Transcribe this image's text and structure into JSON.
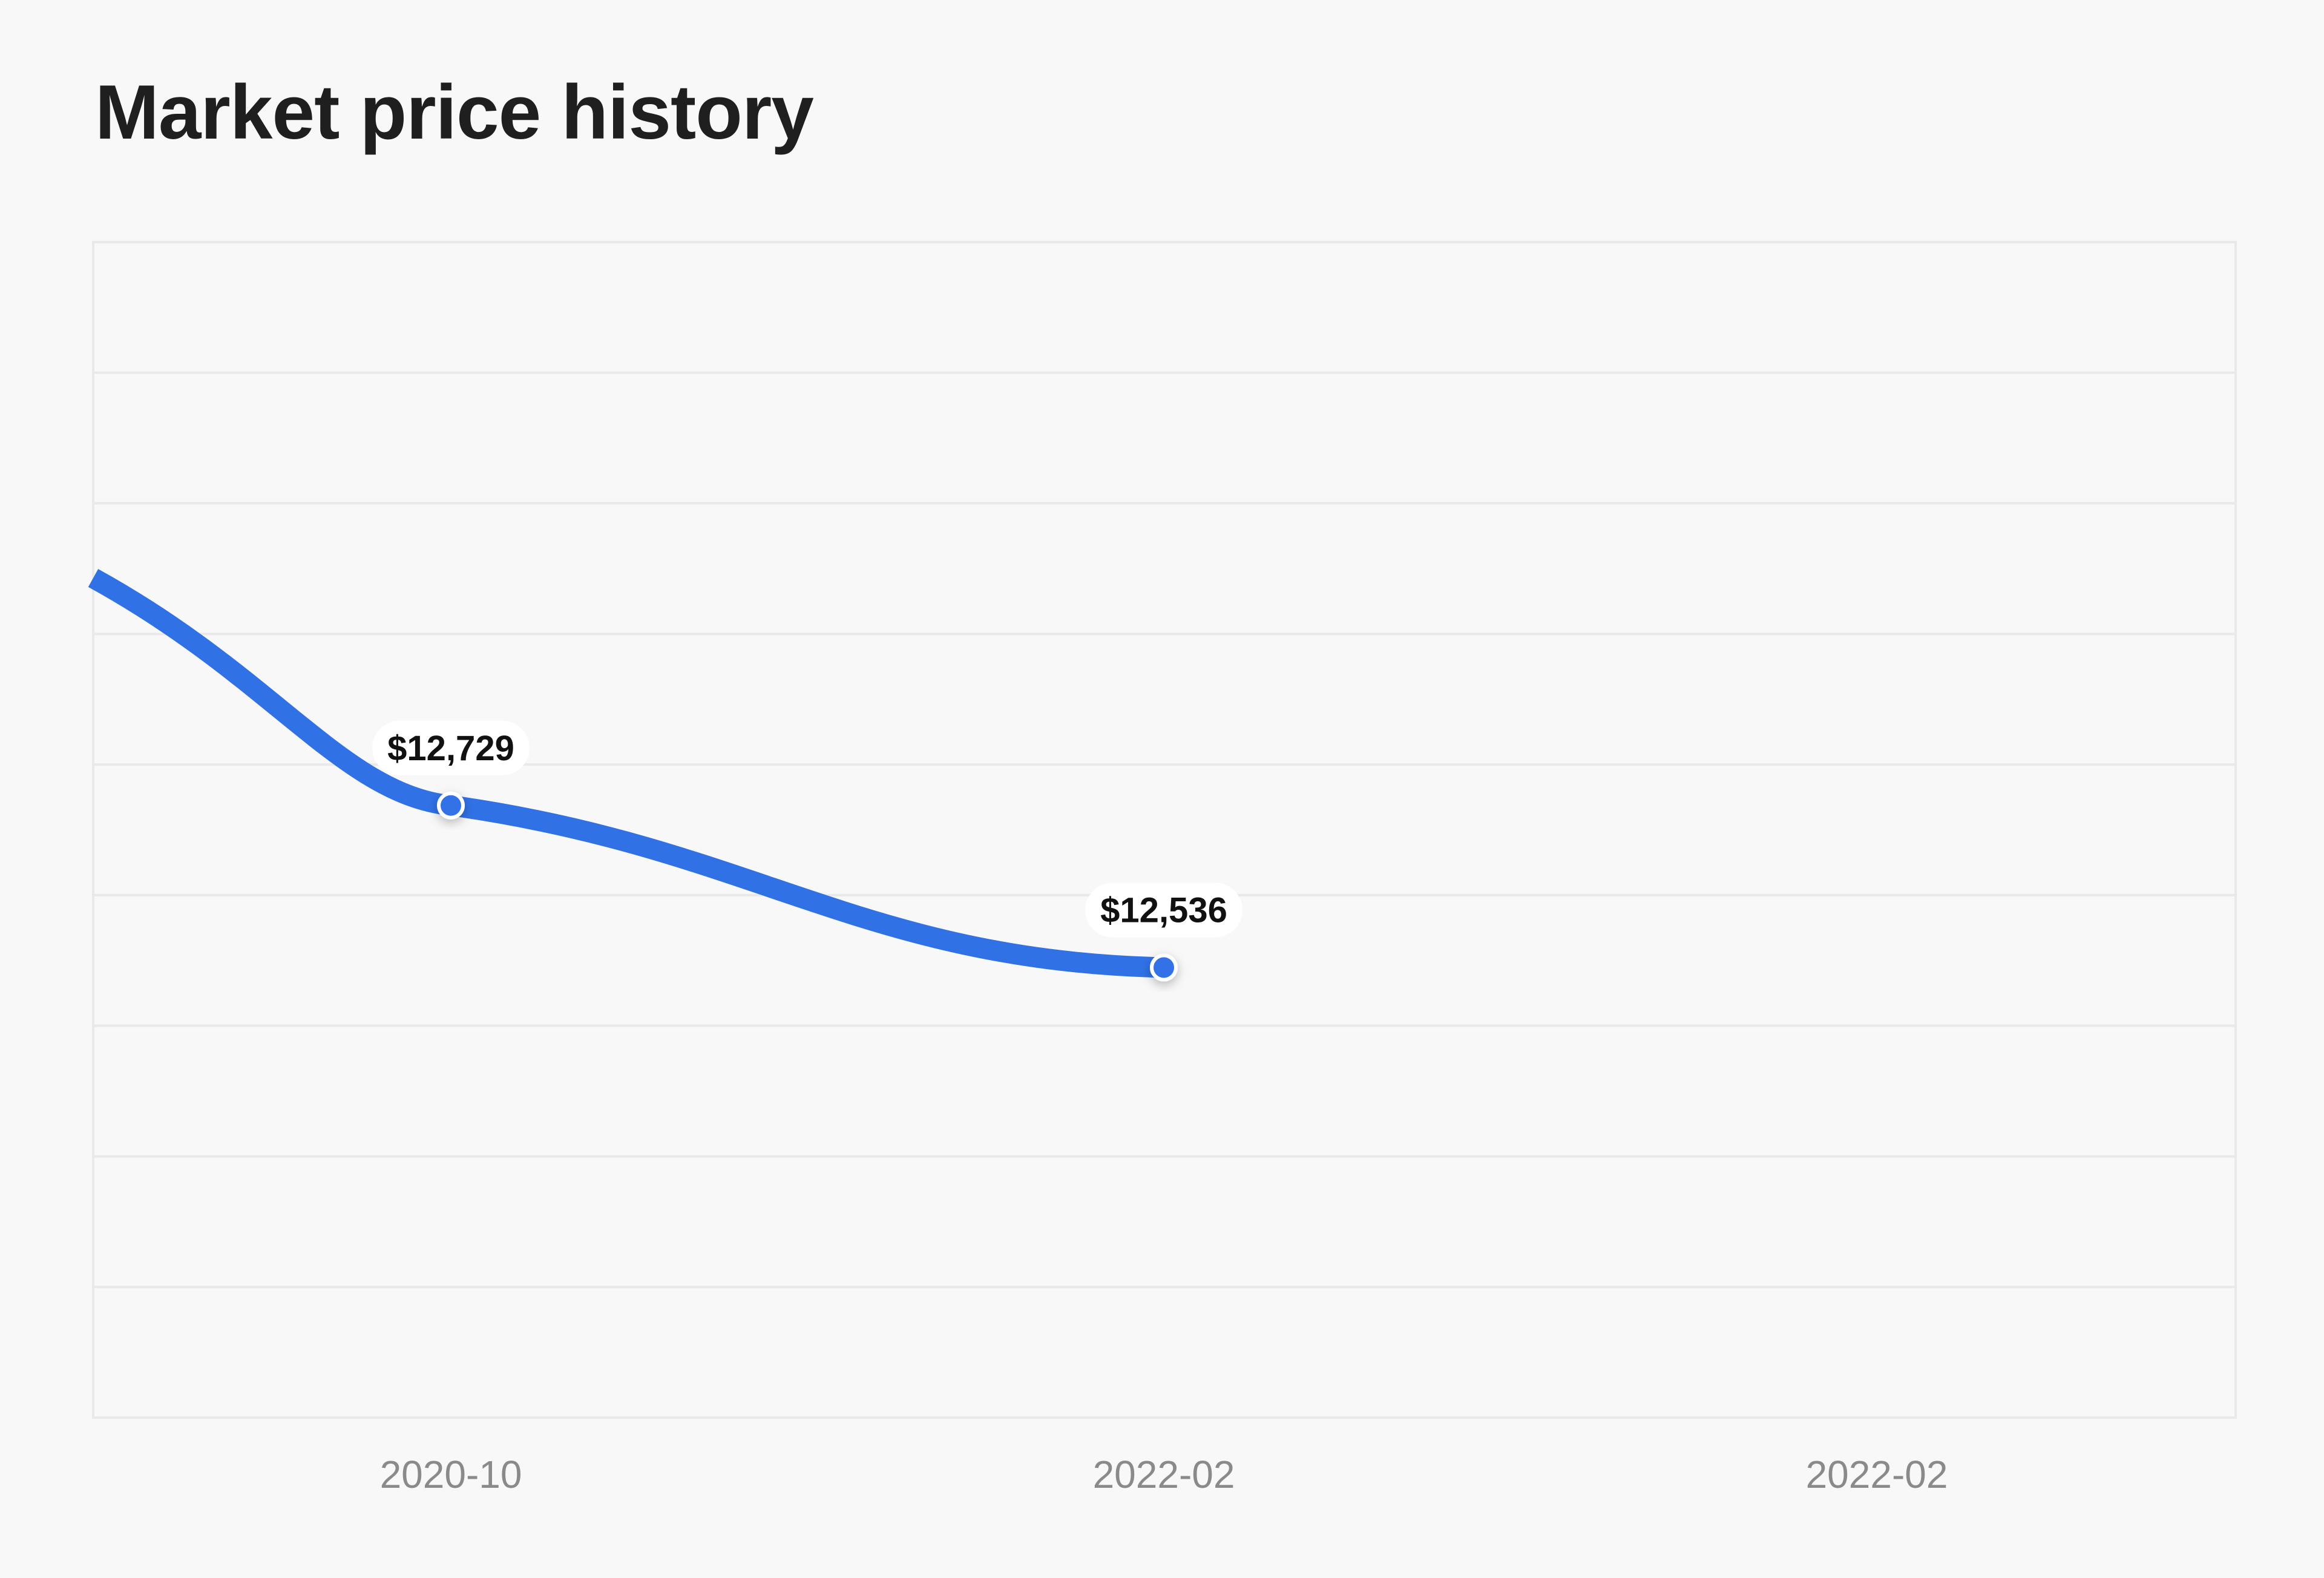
{
  "title": "Market price history",
  "colors": {
    "background": "#f8f8f8",
    "line": "#3071e6",
    "grid": "#e9e9e9",
    "tick": "#8a8a8a",
    "label": "#111111"
  },
  "chart_data": {
    "type": "line",
    "title": "Market price history",
    "xlabel": "",
    "ylabel": "",
    "grid": true,
    "legend": "none",
    "x_ticks": [
      "2020-10",
      "2022-02",
      "2022-02"
    ],
    "series": [
      {
        "points": [
          {
            "x": "2020-10",
            "y": 12729,
            "label": "$12,729"
          },
          {
            "x": "2022-02",
            "y": 12536,
            "label": "$12,536"
          }
        ]
      }
    ],
    "lead_in": {
      "x": "2019-06",
      "y": 13000
    },
    "ylim": [
      12000,
      13400
    ]
  }
}
